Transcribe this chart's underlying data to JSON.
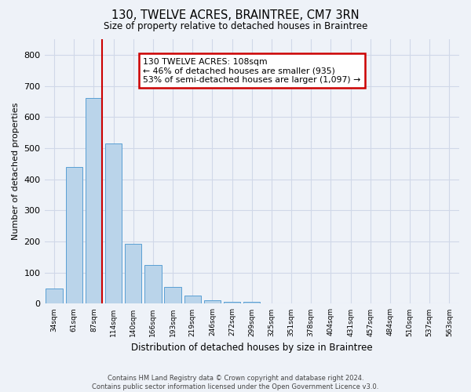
{
  "title": "130, TWELVE ACRES, BRAINTREE, CM7 3RN",
  "subtitle": "Size of property relative to detached houses in Braintree",
  "xlabel": "Distribution of detached houses by size in Braintree",
  "ylabel": "Number of detached properties",
  "categories": [
    "34sqm",
    "61sqm",
    "87sqm",
    "114sqm",
    "140sqm",
    "166sqm",
    "193sqm",
    "219sqm",
    "246sqm",
    "272sqm",
    "299sqm",
    "325sqm",
    "351sqm",
    "378sqm",
    "404sqm",
    "431sqm",
    "457sqm",
    "484sqm",
    "510sqm",
    "537sqm",
    "563sqm"
  ],
  "values": [
    50,
    440,
    660,
    515,
    193,
    125,
    53,
    27,
    10,
    7,
    7,
    0,
    0,
    0,
    0,
    0,
    0,
    0,
    0,
    0,
    0
  ],
  "bar_color": "#bad4ea",
  "bar_edge_color": "#5a9fd4",
  "annotation_text": "130 TWELVE ACRES: 108sqm\n← 46% of detached houses are smaller (935)\n53% of semi-detached houses are larger (1,097) →",
  "annotation_box_color": "#ffffff",
  "annotation_box_edge": "#cc0000",
  "vline_color": "#cc0000",
  "vline_x": 2.43,
  "ylim": [
    0,
    850
  ],
  "yticks": [
    0,
    100,
    200,
    300,
    400,
    500,
    600,
    700,
    800
  ],
  "grid_color": "#d0d8e8",
  "background_color": "#eef2f8",
  "footer1": "Contains HM Land Registry data © Crown copyright and database right 2024.",
  "footer2": "Contains public sector information licensed under the Open Government Licence v3.0."
}
